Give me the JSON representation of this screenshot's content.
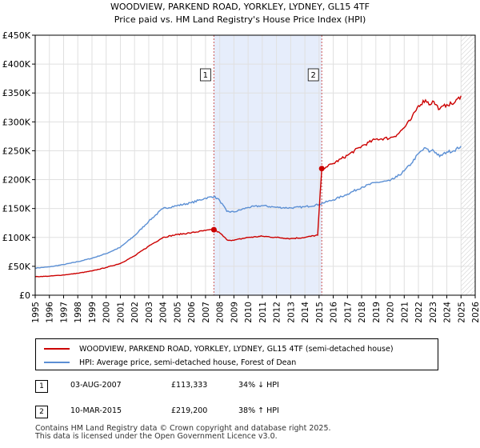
{
  "chart_data": {
    "type": "line",
    "title": "WOODVIEW, PARKEND ROAD, YORKLEY, LYDNEY, GL15 4TF",
    "subtitle": "Price paid vs. HM Land Registry's House Price Index (HPI)",
    "xlim": [
      1995,
      2026
    ],
    "ylim": [
      0,
      450000
    ],
    "x_ticks": [
      "1995",
      "1996",
      "1997",
      "1998",
      "1999",
      "2000",
      "2001",
      "2002",
      "2003",
      "2004",
      "2005",
      "2006",
      "2007",
      "2008",
      "2009",
      "2010",
      "2011",
      "2012",
      "2013",
      "2014",
      "2015",
      "2016",
      "2017",
      "2018",
      "2019",
      "2020",
      "2021",
      "2022",
      "2023",
      "2024",
      "2025",
      "2026"
    ],
    "y_ticks": [
      {
        "value": 0,
        "label": "£0"
      },
      {
        "value": 50000,
        "label": "£50K"
      },
      {
        "value": 100000,
        "label": "£100K"
      },
      {
        "value": 150000,
        "label": "£150K"
      },
      {
        "value": 200000,
        "label": "£200K"
      },
      {
        "value": 250000,
        "label": "£250K"
      },
      {
        "value": 300000,
        "label": "£300K"
      },
      {
        "value": 350000,
        "label": "£350K"
      },
      {
        "value": 400000,
        "label": "£400K"
      },
      {
        "value": 450000,
        "label": "£450K"
      }
    ],
    "grid": true,
    "shaded_period": [
      2007.59,
      2015.19
    ],
    "projection_start": 2025.0,
    "series": [
      {
        "name": "WOODVIEW, PARKEND ROAD, YORKLEY, LYDNEY, GL15 4TF (semi-detached house)",
        "color": "#cc0000",
        "x": [
          1995.0,
          1996.0,
          1997.0,
          1998.0,
          1999.0,
          2000.0,
          2001.0,
          2002.0,
          2003.0,
          2004.0,
          2005.0,
          2006.0,
          2007.0,
          2007.59,
          2008.0,
          2008.5,
          2009.0,
          2010.0,
          2011.0,
          2012.0,
          2013.0,
          2014.0,
          2014.9,
          2015.19,
          2015.5,
          2016.0,
          2017.0,
          2018.0,
          2019.0,
          2020.0,
          2020.5,
          2021.0,
          2021.5,
          2022.0,
          2022.5,
          2022.8,
          2023.0,
          2023.5,
          2024.0,
          2024.5,
          2025.0
        ],
        "y": [
          32000,
          33000,
          35000,
          38000,
          42000,
          48000,
          55000,
          68000,
          85000,
          100000,
          105000,
          108000,
          112000,
          113333,
          108000,
          96000,
          95000,
          100000,
          102000,
          100000,
          98000,
          100000,
          104000,
          219200,
          222000,
          228000,
          242000,
          258000,
          270000,
          272000,
          278000,
          290000,
          305000,
          328000,
          338000,
          330000,
          336000,
          322000,
          330000,
          332000,
          345000
        ]
      },
      {
        "name": "HPI: Average price, semi-detached house, Forest of Dean",
        "color": "#5b8fd4",
        "x": [
          1995.0,
          1996.0,
          1997.0,
          1998.0,
          1999.0,
          2000.0,
          2001.0,
          2002.0,
          2003.0,
          2004.0,
          2005.0,
          2006.0,
          2007.0,
          2007.59,
          2008.0,
          2008.5,
          2009.0,
          2010.0,
          2011.0,
          2012.0,
          2013.0,
          2014.0,
          2015.0,
          2015.19,
          2016.0,
          2017.0,
          2018.0,
          2019.0,
          2020.0,
          2020.5,
          2021.0,
          2021.5,
          2022.0,
          2022.5,
          2022.8,
          2023.0,
          2023.5,
          2024.0,
          2024.5,
          2025.0
        ],
        "y": [
          47000,
          49000,
          53000,
          58000,
          64000,
          72000,
          83000,
          103000,
          128000,
          150000,
          155000,
          160000,
          168000,
          171000,
          164000,
          145000,
          144000,
          152000,
          155000,
          152000,
          151000,
          153000,
          157000,
          159000,
          165000,
          175000,
          187000,
          195000,
          198000,
          205000,
          215000,
          228000,
          245000,
          255000,
          248000,
          252000,
          240000,
          248000,
          250000,
          258000
        ]
      }
    ],
    "annotations": [
      {
        "label": "1",
        "x": 2007.59,
        "y": 113333
      },
      {
        "label": "2",
        "x": 2015.19,
        "y": 219200
      }
    ]
  },
  "legend": {
    "property_label": "WOODVIEW, PARKEND ROAD, YORKLEY, LYDNEY, GL15 4TF (semi-detached house)",
    "hpi_label": "HPI: Average price, semi-detached house, Forest of Dean",
    "property_color": "#cc0000",
    "hpi_color": "#5b8fd4"
  },
  "sales": [
    {
      "num": "1",
      "date": "03-AUG-2007",
      "price": "£113,333",
      "hpi": "34% ↓ HPI"
    },
    {
      "num": "2",
      "date": "10-MAR-2015",
      "price": "£219,200",
      "hpi": "38% ↑ HPI"
    }
  ],
  "footer": {
    "line1": "Contains HM Land Registry data © Crown copyright and database right 2025.",
    "line2": "This data is licensed under the Open Government Licence v3.0."
  }
}
